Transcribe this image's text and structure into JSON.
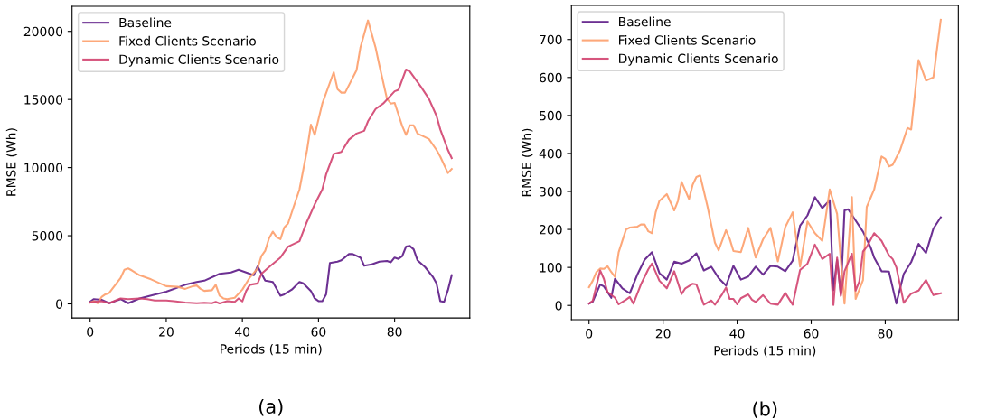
{
  "chart_data": [
    {
      "type": "line",
      "xlabel": "Periods (15 min)",
      "ylabel": "RMSE (Wh)",
      "xlim": [
        -4.75,
        99.75
      ],
      "ylim": [
        -1040,
        21840
      ],
      "xticks": [
        0,
        20,
        40,
        60,
        80
      ],
      "yticks": [
        0,
        5000,
        10000,
        15000,
        20000
      ],
      "legend": "top left",
      "grid": false,
      "annotations": [
        "(a)"
      ],
      "series": [
        {
          "name": "Baseline",
          "color": "#5c1a86",
          "x": [
            0,
            1,
            3,
            5,
            8,
            10,
            13,
            20,
            25,
            28,
            30,
            34,
            37,
            39,
            40,
            42,
            43,
            44,
            46,
            48,
            50,
            51,
            53,
            55,
            56,
            58,
            59,
            60,
            61,
            62,
            63,
            65,
            66,
            68,
            69,
            71,
            72,
            74,
            76,
            78,
            79,
            80,
            81,
            82,
            83,
            84,
            85,
            86,
            88,
            90,
            91,
            92,
            93,
            94,
            95
          ],
          "values": [
            150,
            350,
            300,
            50,
            350,
            50,
            400,
            900,
            1400,
            1600,
            1700,
            2200,
            2300,
            2500,
            2400,
            2200,
            2100,
            2750,
            1700,
            1600,
            600,
            700,
            1050,
            1600,
            1500,
            950,
            400,
            200,
            200,
            700,
            3000,
            3100,
            3200,
            3650,
            3650,
            3400,
            2800,
            2900,
            3100,
            3150,
            3050,
            3400,
            3300,
            3500,
            4200,
            4250,
            4000,
            3200,
            2700,
            2000,
            1500,
            200,
            150,
            1000,
            2100
          ]
        },
        {
          "name": "Fixed Clients Scenario",
          "color": "#fd9f6c",
          "x": [
            0,
            1,
            2,
            3,
            4,
            5,
            8,
            9,
            10,
            11,
            13,
            16,
            20,
            23,
            25,
            27,
            28,
            29,
            30,
            32,
            33,
            34,
            35,
            36,
            38,
            40,
            42,
            44,
            45,
            46,
            47,
            48,
            49,
            50,
            51,
            52,
            55,
            57,
            58,
            59,
            61,
            64,
            65,
            66,
            67,
            70,
            71,
            73,
            75,
            76,
            78,
            79,
            80,
            81,
            82,
            83,
            84,
            85,
            86,
            89,
            91,
            92,
            94,
            95
          ],
          "values": [
            100,
            200,
            50,
            500,
            700,
            800,
            1900,
            2500,
            2600,
            2450,
            2100,
            1800,
            1300,
            1250,
            1100,
            1300,
            1350,
            1100,
            950,
            1000,
            1400,
            600,
            400,
            350,
            450,
            1050,
            1950,
            2600,
            3500,
            3900,
            4800,
            5300,
            4900,
            4750,
            5600,
            5900,
            8400,
            11300,
            13150,
            12400,
            14700,
            17000,
            15750,
            15500,
            15500,
            17150,
            18800,
            20800,
            18800,
            17500,
            15050,
            14700,
            14750,
            13900,
            13050,
            12400,
            13100,
            13100,
            12500,
            12100,
            11300,
            10800,
            9600,
            9900
          ]
        },
        {
          "name": "Dynamic Clients Scenario",
          "color": "#d1426f",
          "x": [
            0,
            1,
            3,
            5,
            8,
            10,
            13,
            15,
            17,
            20,
            22,
            25,
            28,
            30,
            32,
            33,
            34,
            36,
            38,
            39,
            40,
            41,
            42,
            44,
            45,
            47,
            50,
            52,
            55,
            57,
            59,
            61,
            62,
            64,
            66,
            68,
            70,
            72,
            73,
            75,
            77,
            80,
            81,
            83,
            84,
            87,
            89,
            91,
            92,
            94,
            95
          ],
          "values": [
            100,
            150,
            200,
            50,
            400,
            350,
            400,
            350,
            250,
            250,
            200,
            100,
            50,
            80,
            50,
            150,
            30,
            200,
            150,
            400,
            180,
            950,
            1400,
            1500,
            2200,
            2700,
            3400,
            4200,
            4600,
            6050,
            7300,
            8400,
            9500,
            11000,
            11150,
            12050,
            12500,
            12700,
            13400,
            14300,
            14700,
            15600,
            15700,
            17200,
            17050,
            15900,
            15050,
            13800,
            12800,
            11300,
            10700
          ]
        }
      ]
    },
    {
      "type": "line",
      "xlabel": "Periods (15 min)",
      "ylabel": "RMSE (Wh)",
      "xlim": [
        -4.75,
        99.75
      ],
      "ylim": [
        -37.6,
        789.6
      ],
      "xticks": [
        0,
        20,
        40,
        60,
        80
      ],
      "yticks": [
        0,
        100,
        200,
        300,
        400,
        500,
        600,
        700
      ],
      "legend": "top left",
      "grid": false,
      "annotations": [
        "(b)"
      ],
      "series": [
        {
          "name": "Baseline",
          "color": "#5c1a86",
          "x": [
            0,
            1,
            3,
            4,
            6,
            7,
            9,
            11,
            13,
            15,
            17,
            19,
            21,
            23,
            25,
            27,
            29,
            31,
            33,
            35,
            37,
            39,
            41,
            43,
            45,
            47,
            49,
            51,
            53,
            55,
            57,
            59,
            61,
            63,
            65,
            66,
            67,
            68,
            69,
            70,
            74,
            76,
            77,
            79,
            81,
            83,
            85,
            87,
            89,
            91,
            93,
            95
          ],
          "values": [
            5,
            10,
            55,
            50,
            20,
            70,
            45,
            32,
            80,
            120,
            140,
            85,
            68,
            115,
            110,
            118,
            137,
            92,
            102,
            72,
            52,
            104,
            68,
            76,
            102,
            81,
            104,
            102,
            90,
            118,
            210,
            237,
            285,
            256,
            277,
            40,
            120,
            30,
            250,
            253,
            194,
            154,
            126,
            90,
            89,
            5,
            83,
            114,
            162,
            138,
            202,
            232
          ]
        },
        {
          "name": "Fixed Clients Scenario",
          "color": "#fd9f6c",
          "x": [
            0,
            1,
            2,
            3,
            4,
            5,
            6,
            7,
            8,
            9,
            10,
            11,
            13,
            14,
            15,
            16,
            17,
            18,
            19,
            21,
            23,
            24,
            25,
            27,
            28,
            29,
            30,
            32,
            33,
            34,
            35,
            37,
            38,
            39,
            41,
            43,
            45,
            47,
            49,
            51,
            53,
            55,
            57,
            59,
            61,
            63,
            65,
            67,
            68,
            69,
            71,
            72,
            74,
            75,
            77,
            79,
            80,
            81,
            82,
            84,
            86,
            87,
            89,
            91,
            93,
            95
          ],
          "values": [
            48,
            65,
            88,
            97,
            96,
            103,
            88,
            75,
            140,
            170,
            200,
            205,
            207,
            213,
            213,
            195,
            190,
            245,
            275,
            293,
            250,
            275,
            325,
            280,
            318,
            338,
            342,
            260,
            213,
            165,
            145,
            198,
            175,
            143,
            140,
            204,
            126,
            174,
            204,
            116,
            206,
            245,
            102,
            221,
            190,
            170,
            305,
            241,
            120,
            5,
            285,
            17,
            67,
            259,
            305,
            392,
            386,
            366,
            370,
            408,
            467,
            463,
            646,
            592,
            600,
            752
          ]
        },
        {
          "name": "Dynamic Clients Scenario",
          "color": "#d1426f",
          "x": [
            0,
            1,
            3,
            4,
            5,
            6,
            7,
            8,
            10,
            11,
            12,
            14,
            16,
            17,
            19,
            21,
            23,
            25,
            26,
            28,
            29,
            31,
            33,
            34,
            36,
            37,
            38,
            39,
            40,
            41,
            43,
            44,
            45,
            47,
            49,
            51,
            53,
            55,
            57,
            59,
            61,
            63,
            65,
            66,
            67,
            68,
            69,
            71,
            72,
            73,
            74,
            75,
            77,
            79,
            81,
            82,
            83,
            85,
            87,
            89,
            91,
            93,
            95
          ],
          "values": [
            5,
            12,
            92,
            70,
            35,
            28,
            20,
            3,
            15,
            22,
            5,
            55,
            95,
            110,
            65,
            45,
            90,
            30,
            45,
            57,
            55,
            2,
            13,
            2,
            30,
            47,
            17,
            17,
            3,
            19,
            29,
            15,
            9,
            27,
            5,
            2,
            33,
            2,
            93,
            110,
            160,
            122,
            136,
            1,
            126,
            25,
            90,
            136,
            39,
            63,
            142,
            154,
            190,
            170,
            132,
            122,
            100,
            7,
            31,
            39,
            67,
            27,
            32
          ]
        }
      ]
    }
  ]
}
